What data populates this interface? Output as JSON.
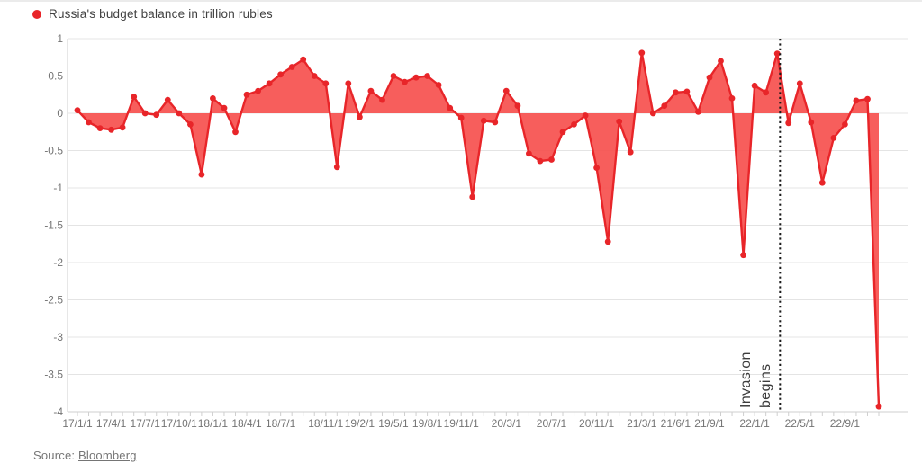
{
  "legend": {
    "label": "Russia's budget balance in trillion rubles"
  },
  "annotation": {
    "line1": "Invasion",
    "line2": "begins"
  },
  "source": {
    "prefix": "Source: ",
    "link_label": "Bloomberg"
  },
  "colors": {
    "accent_red": "#e82529",
    "area_fill": "#f6504e",
    "invasion_line": "#1a1a1a",
    "gridline": "#e4e4e4",
    "axis": "#cfcfcf",
    "tick_text": "#747474"
  },
  "chart_data": {
    "type": "area",
    "title": "Russia's budget balance in trillion rubles",
    "ylabel": "",
    "xlabel": "",
    "ylim": [
      -4,
      1
    ],
    "ytick_step": 0.5,
    "grid": true,
    "legend_position": "top-left",
    "ytick_labels": [
      "1",
      "0.5",
      "0",
      "-0.5",
      "-1",
      "-1.5",
      "-2",
      "-2.5",
      "-3",
      "-3.5",
      "-4"
    ],
    "xtick_labels": [
      "17/1/1",
      "17/4/1",
      "17/7/1",
      "17/10/1",
      "18/1/1",
      "18/4/1",
      "18/7/1",
      "18/11/1",
      "19/2/1",
      "19/5/1",
      "19/8/1",
      "19/11/1",
      "20/3/1",
      "20/7/1",
      "20/11/1",
      "21/3/1",
      "21/6/1",
      "21/9/1",
      "22/1/1",
      "22/5/1",
      "22/9/1"
    ],
    "x": [
      "17/1/1",
      "17/2/1",
      "17/3/1",
      "17/4/1",
      "17/5/1",
      "17/6/1",
      "17/7/1",
      "17/8/1",
      "17/9/1",
      "17/10/1",
      "17/11/1",
      "17/12/1",
      "18/1/1",
      "18/2/1",
      "18/3/1",
      "18/4/1",
      "18/5/1",
      "18/6/1",
      "18/7/1",
      "18/8/1",
      "18/9/1",
      "18/10/1",
      "18/11/1",
      "18/12/1",
      "19/1/1",
      "19/2/1",
      "19/3/1",
      "19/4/1",
      "19/5/1",
      "19/6/1",
      "19/7/1",
      "19/8/1",
      "19/9/1",
      "19/10/1",
      "19/11/1",
      "19/12/1",
      "20/1/1",
      "20/2/1",
      "20/3/1",
      "20/4/1",
      "20/5/1",
      "20/6/1",
      "20/7/1",
      "20/8/1",
      "20/9/1",
      "20/10/1",
      "20/11/1",
      "20/12/1",
      "21/1/1",
      "21/2/1",
      "21/3/1",
      "21/4/1",
      "21/5/1",
      "21/6/1",
      "21/7/1",
      "21/8/1",
      "21/9/1",
      "21/10/1",
      "21/11/1",
      "21/12/1",
      "22/1/1",
      "22/2/1",
      "22/3/1",
      "22/4/1",
      "22/5/1",
      "22/6/1",
      "22/7/1",
      "22/8/1",
      "22/9/1",
      "22/10/1",
      "22/11/1",
      "22/12/1"
    ],
    "values": [
      0.04,
      -0.12,
      -0.2,
      -0.22,
      -0.19,
      0.22,
      0.0,
      -0.02,
      0.18,
      0.0,
      -0.15,
      -0.82,
      0.2,
      0.07,
      -0.25,
      0.25,
      0.3,
      0.4,
      0.52,
      0.62,
      0.72,
      0.5,
      0.4,
      -0.72,
      0.4,
      -0.05,
      0.3,
      0.18,
      0.5,
      0.42,
      0.48,
      0.5,
      0.38,
      0.07,
      -0.06,
      -1.12,
      -0.1,
      -0.12,
      0.3,
      0.1,
      -0.54,
      -0.64,
      -0.62,
      -0.25,
      -0.15,
      -0.03,
      -0.73,
      -1.72,
      -0.11,
      -0.52,
      0.81,
      0.0,
      0.1,
      0.28,
      0.29,
      0.02,
      0.48,
      0.7,
      0.2,
      -1.9,
      0.37,
      0.28,
      0.8,
      -0.13,
      0.4,
      -0.12,
      -0.93,
      -0.33,
      -0.15,
      0.17,
      0.19,
      -3.93
    ],
    "annotation_line_index": 62.25
  }
}
